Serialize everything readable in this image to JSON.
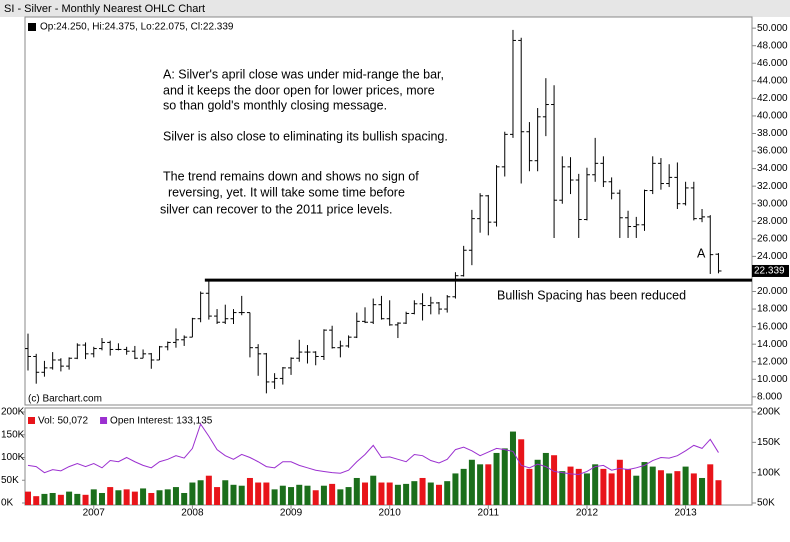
{
  "chart_data": [
    {
      "type": "ohlc",
      "title": "SI - Silver - Monthly Nearest OHLC Chart",
      "series": [
        {
          "name": "Op:24.250, Hi:24.375, Lo:22.075, Cl:22.339",
          "color": "#000000",
          "open": [
            13.5,
            12.6,
            10.8,
            11.3,
            12.2,
            11.5,
            12.4,
            13.9,
            12.9,
            13.5,
            14.2,
            13.4,
            13.4,
            13.2,
            12.4,
            12.9,
            12.2,
            13.7,
            14.2,
            14.5,
            14.8,
            16.9,
            19.8,
            17.2,
            16.5,
            16.9,
            17.6,
            17.6,
            13.6,
            12.9,
            9.7,
            10.1,
            11.3,
            12.4,
            13.1,
            13.1,
            12.6,
            15.6,
            13.6,
            13.8,
            14.8,
            16.6,
            16.5,
            18.5,
            16.9,
            16.2,
            16.4,
            17.5,
            18.6,
            18.4,
            18.7,
            18.0,
            19.4,
            21.8,
            24.7,
            28.3,
            30.9,
            27.9,
            34.2,
            37.9,
            48.6,
            38.2,
            34.9,
            39.9,
            41.3,
            30.4,
            34.2,
            32.7,
            28.2,
            33.3,
            34.6,
            32.5,
            31.2,
            28.4,
            27.4,
            27.6,
            31.5,
            34.6,
            32.3,
            33.0,
            30.0,
            31.8,
            28.3,
            28.5,
            24.25
          ],
          "high": [
            15.2,
            12.9,
            12.1,
            13.1,
            12.4,
            12.5,
            14.1,
            14.2,
            13.7,
            14.7,
            14.4,
            14.1,
            13.7,
            13.8,
            13.4,
            13.0,
            13.8,
            14.3,
            15.8,
            15.0,
            17.0,
            20.0,
            21.2,
            18.0,
            18.5,
            18.0,
            19.5,
            17.6,
            14.0,
            13.0,
            10.7,
            11.4,
            12.5,
            14.5,
            13.9,
            13.2,
            15.7,
            16.1,
            14.4,
            15.0,
            17.6,
            18.2,
            19.2,
            19.5,
            19.0,
            16.5,
            17.7,
            19.0,
            19.8,
            19.4,
            18.8,
            19.6,
            22.2,
            25.2,
            29.3,
            31.2,
            31.0,
            34.4,
            38.2,
            49.8,
            48.9,
            39.3,
            40.9,
            44.3,
            43.5,
            35.4,
            35.3,
            33.4,
            34.1,
            37.5,
            35.4,
            33.0,
            31.6,
            29.2,
            28.5,
            31.6,
            35.4,
            35.2,
            34.5,
            34.7,
            32.5,
            32.5,
            29.4,
            28.7,
            24.375
          ],
          "low": [
            11.0,
            9.5,
            10.3,
            11.1,
            10.9,
            11.1,
            12.3,
            12.3,
            12.5,
            13.3,
            12.7,
            13.3,
            12.8,
            12.3,
            12.4,
            11.2,
            12.2,
            13.3,
            13.6,
            13.8,
            14.8,
            16.5,
            16.8,
            16.3,
            16.3,
            16.3,
            17.3,
            12.5,
            10.4,
            8.4,
            8.9,
            9.4,
            10.5,
            12.0,
            11.8,
            11.6,
            12.2,
            13.5,
            12.5,
            13.6,
            14.7,
            16.4,
            16.3,
            16.8,
            16.1,
            14.7,
            16.3,
            17.4,
            16.7,
            17.4,
            17.4,
            17.6,
            19.2,
            21.7,
            23.0,
            26.7,
            26.4,
            27.4,
            33.1,
            37.5,
            32.3,
            33.7,
            33.7,
            37.7,
            26.1,
            30.0,
            31.1,
            26.1,
            28.1,
            32.5,
            31.9,
            30.5,
            26.1,
            26.1,
            26.1,
            26.9,
            31.1,
            31.6,
            31.9,
            29.4,
            29.8,
            28.1,
            27.9,
            22.0,
            22.075
          ],
          "close": [
            12.6,
            10.8,
            11.3,
            12.2,
            11.5,
            12.4,
            13.9,
            12.9,
            13.5,
            14.2,
            13.4,
            13.4,
            13.2,
            12.4,
            12.9,
            12.2,
            13.7,
            14.2,
            14.5,
            14.8,
            16.9,
            19.8,
            17.2,
            16.5,
            16.9,
            17.6,
            17.6,
            13.6,
            12.9,
            9.7,
            10.1,
            11.3,
            12.4,
            13.1,
            13.1,
            12.6,
            15.6,
            13.6,
            13.8,
            14.8,
            16.6,
            16.5,
            18.5,
            16.9,
            16.2,
            16.4,
            17.5,
            18.6,
            18.4,
            18.7,
            18.0,
            19.4,
            21.8,
            24.7,
            28.3,
            30.9,
            27.9,
            34.2,
            37.9,
            48.6,
            38.2,
            34.9,
            39.9,
            41.3,
            30.4,
            34.2,
            32.7,
            28.2,
            33.3,
            34.6,
            32.5,
            31.2,
            28.4,
            27.4,
            27.6,
            31.5,
            34.6,
            32.3,
            33.0,
            30.0,
            31.8,
            28.3,
            28.5,
            24.2,
            22.339
          ],
          "last_label": "22.339"
        }
      ],
      "ylim": [
        7.3,
        50.7
      ],
      "yticks": [
        {
          "value": 8,
          "label": "8.000"
        },
        {
          "value": 10,
          "label": "10.000"
        },
        {
          "value": 12,
          "label": "12.000"
        },
        {
          "value": 14,
          "label": "14.000"
        },
        {
          "value": 16,
          "label": "16.000"
        },
        {
          "value": 18,
          "label": "18.000"
        },
        {
          "value": 20,
          "label": "20.000"
        },
        {
          "value": 22,
          "label": "22.000"
        },
        {
          "value": 24,
          "label": "24.000"
        },
        {
          "value": 26,
          "label": "26.000"
        },
        {
          "value": 28,
          "label": "28.000"
        },
        {
          "value": 30,
          "label": "30.000"
        },
        {
          "value": 32,
          "label": "32.000"
        },
        {
          "value": 34,
          "label": "34.000"
        },
        {
          "value": 36,
          "label": "36.000"
        },
        {
          "value": 38,
          "label": "38.000"
        },
        {
          "value": 40,
          "label": "40.000"
        },
        {
          "value": 42,
          "label": "42.000"
        },
        {
          "value": 44,
          "label": "44.000"
        },
        {
          "value": 46,
          "label": "46.000"
        },
        {
          "value": 48,
          "label": "48.000"
        },
        {
          "value": 50,
          "label": "50.000"
        }
      ],
      "hline": 21.3,
      "annotations": [
        "A: Silver's april close was under mid-range the bar,",
        "and it keeps the door open for lower prices, more",
        "so than gold's monthly closing message.",
        "Silver is also close to eliminating its bullish spacing.",
        "The trend remains down and shows no sign of",
        "reversing, yet.  It will take some time before",
        "silver can recover to the 2011 price levels.",
        "A",
        "Bullish Spacing has been reduced"
      ],
      "credit": "(c) Barchart.com"
    },
    {
      "type": "volume",
      "categories": [
        null,
        null,
        null,
        null,
        null,
        null,
        null,
        null,
        "2007",
        null,
        null,
        null,
        null,
        null,
        null,
        null,
        null,
        null,
        null,
        null,
        "2008",
        null,
        null,
        null,
        null,
        null,
        null,
        null,
        null,
        null,
        null,
        null,
        "2009",
        null,
        null,
        null,
        null,
        null,
        null,
        null,
        null,
        null,
        null,
        null,
        "2010",
        null,
        null,
        null,
        null,
        null,
        null,
        null,
        null,
        null,
        null,
        null,
        "2011",
        null,
        null,
        null,
        null,
        null,
        null,
        null,
        null,
        null,
        null,
        null,
        "2012",
        null,
        null,
        null,
        null,
        null,
        null,
        null,
        null,
        null,
        null,
        null,
        "2013",
        null,
        null,
        null,
        null
      ],
      "up_color": "#1b6e1b",
      "down_color": "#e8141a",
      "series": [
        {
          "name": "Vol: 50,072",
          "axis": "y",
          "color": "#e8141a",
          "values": [
            25000,
            15000,
            20000,
            22000,
            18000,
            25000,
            20000,
            18000,
            30000,
            22000,
            35000,
            28000,
            30000,
            25000,
            32000,
            22000,
            28000,
            30000,
            35000,
            22000,
            45000,
            50000,
            60000,
            35000,
            50000,
            40000,
            38000,
            55000,
            45000,
            45000,
            30000,
            38000,
            35000,
            40000,
            38000,
            28000,
            38000,
            42000,
            30000,
            35000,
            55000,
            45000,
            60000,
            45000,
            45000,
            40000,
            42000,
            48000,
            55000,
            45000,
            40000,
            48000,
            65000,
            75000,
            95000,
            85000,
            85000,
            110000,
            120000,
            157000,
            140000,
            75000,
            95000,
            110000,
            105000,
            70000,
            80000,
            75000,
            65000,
            85000,
            75000,
            65000,
            95000,
            75000,
            60000,
            90000,
            80000,
            72000,
            65000,
            70000,
            80000,
            65000,
            55000,
            85000,
            50072
          ]
        },
        {
          "name": "Open Interest: 133,135",
          "axis": "y2",
          "color": "#9b30d0",
          "values": [
            112000,
            110000,
            100000,
            105000,
            103000,
            110000,
            115000,
            110000,
            115000,
            108000,
            120000,
            118000,
            125000,
            118000,
            112000,
            108000,
            118000,
            122000,
            128000,
            124000,
            140000,
            180000,
            160000,
            138000,
            128000,
            122000,
            130000,
            125000,
            118000,
            110000,
            108000,
            118000,
            118000,
            112000,
            108000,
            104000,
            102000,
            100000,
            99000,
            104000,
            118000,
            130000,
            145000,
            125000,
            126000,
            122000,
            118000,
            130000,
            128000,
            120000,
            116000,
            122000,
            138000,
            142000,
            136000,
            128000,
            134000,
            140000,
            138000,
            135000,
            112000,
            108000,
            114000,
            110000,
            102000,
            100000,
            98000,
            97000,
            102000,
            110000,
            112000,
            104000,
            107000,
            105000,
            108000,
            112000,
            120000,
            125000,
            124000,
            128000,
            136000,
            145000,
            140000,
            155000,
            133135
          ]
        }
      ],
      "ylim": [
        0,
        200000
      ],
      "yticks": [
        {
          "value": 0,
          "label": "0K"
        },
        {
          "value": 50000,
          "label": "50K"
        },
        {
          "value": 100000,
          "label": "100K"
        },
        {
          "value": 150000,
          "label": "150K"
        },
        {
          "value": 200000,
          "label": "200K"
        }
      ],
      "y2lim": [
        50000,
        200000
      ],
      "y2ticks": [
        {
          "value": 50000,
          "label": "50K"
        },
        {
          "value": 100000,
          "label": "100K"
        },
        {
          "value": 150000,
          "label": "150K"
        },
        {
          "value": 200000,
          "label": "200K"
        }
      ]
    }
  ]
}
